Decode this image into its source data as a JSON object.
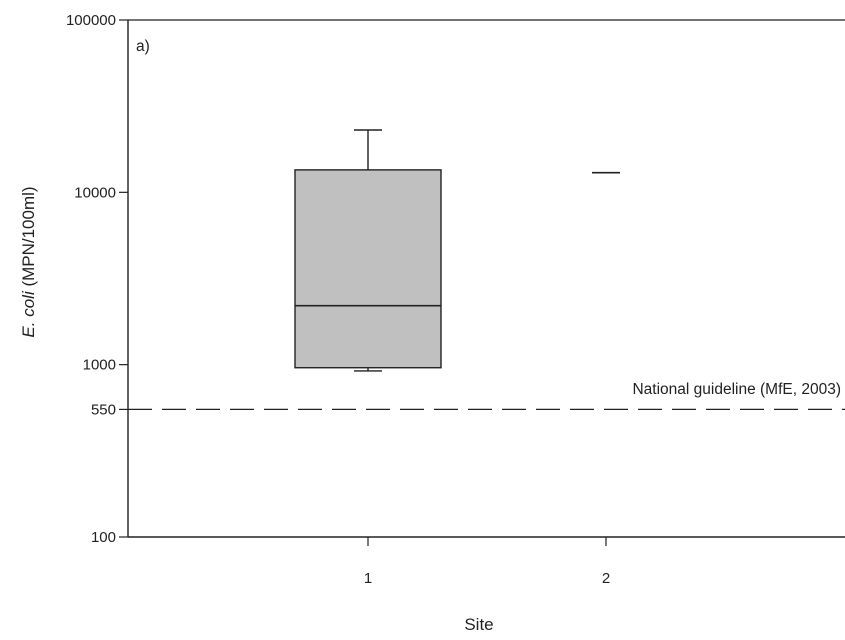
{
  "chart_data": {
    "type": "box",
    "panel_label": "a)",
    "xlabel": "Site",
    "ylabel_italic": "E. coli",
    "ylabel_rest": " (MPN/100ml)",
    "y_scale": "log",
    "ylim": [
      100,
      100000
    ],
    "y_ticks": [
      {
        "value": 100000,
        "label": "100000"
      },
      {
        "value": 10000,
        "label": "10000"
      },
      {
        "value": 1000,
        "label": "1000"
      },
      {
        "value": 550,
        "label": "550"
      },
      {
        "value": 100,
        "label": "100"
      }
    ],
    "categories": [
      "1",
      "2"
    ],
    "boxes": [
      {
        "site": "1",
        "min": 920,
        "q1": 960,
        "median": 2200,
        "q3": 13500,
        "max": 23000
      },
      {
        "site": "2",
        "min": 13000,
        "q1": 13000,
        "median": 13000,
        "q3": 13000,
        "max": 13000
      }
    ],
    "reference_line": {
      "value": 550,
      "label": "National guideline (MfE, 2003)",
      "style": "dashed"
    },
    "box_fill": "#c0c0c0",
    "line_color": "#222222"
  }
}
